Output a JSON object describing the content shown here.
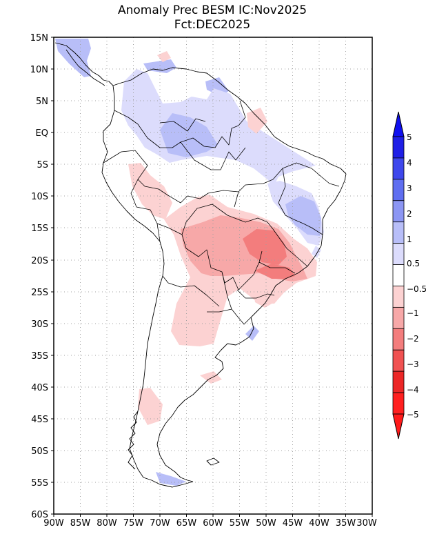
{
  "title": {
    "line1": "Anomaly Prec BESM IC:Nov2025",
    "line2": "Fct:DEC2025"
  },
  "map": {
    "lon_range": [
      -90,
      -30
    ],
    "lat_range": [
      -60,
      15
    ],
    "lat_labels": [
      {
        "lat": 15,
        "text": "15N"
      },
      {
        "lat": 10,
        "text": "10N"
      },
      {
        "lat": 5,
        "text": "5N"
      },
      {
        "lat": 0,
        "text": "EQ"
      },
      {
        "lat": -5,
        "text": "5S"
      },
      {
        "lat": -10,
        "text": "10S"
      },
      {
        "lat": -15,
        "text": "15S"
      },
      {
        "lat": -20,
        "text": "20S"
      },
      {
        "lat": -25,
        "text": "25S"
      },
      {
        "lat": -30,
        "text": "30S"
      },
      {
        "lat": -35,
        "text": "35S"
      },
      {
        "lat": -40,
        "text": "40S"
      },
      {
        "lat": -45,
        "text": "45S"
      },
      {
        "lat": -50,
        "text": "50S"
      },
      {
        "lat": -55,
        "text": "55S"
      },
      {
        "lat": -60,
        "text": "60S"
      }
    ],
    "lon_labels": [
      {
        "lon": -90,
        "text": "90W"
      },
      {
        "lon": -85,
        "text": "85W"
      },
      {
        "lon": -80,
        "text": "80W"
      },
      {
        "lon": -75,
        "text": "75W"
      },
      {
        "lon": -70,
        "text": "70W"
      },
      {
        "lon": -65,
        "text": "65W"
      },
      {
        "lon": -60,
        "text": "60W"
      },
      {
        "lon": -55,
        "text": "55W"
      },
      {
        "lon": -50,
        "text": "50W"
      },
      {
        "lon": -45,
        "text": "45W"
      },
      {
        "lon": -40,
        "text": "40W"
      },
      {
        "lon": -35,
        "text": "35W"
      },
      {
        "lon": -30,
        "text": "30W"
      }
    ]
  },
  "colorbar": {
    "labels": [
      "5",
      "4",
      "3",
      "2",
      "1",
      "0.5",
      "−0.5",
      "−1",
      "−2",
      "−3",
      "−4",
      "−5"
    ],
    "colors": [
      "#1f1fe6",
      "#3e47ec",
      "#5f6ef0",
      "#8c96f3",
      "#b8bef8",
      "#dcdcfc",
      "#ffffff",
      "#fcd2d2",
      "#f7a8a8",
      "#f37d7d",
      "#f05252",
      "#ec2727",
      "#ff2020"
    ],
    "top_arrow_color": "#1010f0",
    "bottom_arrow_color": "#ff1a1a"
  },
  "colors": {
    "blue_light": "#dcdcfc",
    "blue_mid": "#b8bef8",
    "blue_strong": "#8c96f3",
    "red_light": "#fcd2d2",
    "red_mid": "#f7a8a8",
    "red_strong": "#f37d7d",
    "grid": "#a0a0a0",
    "border": "#000000"
  }
}
